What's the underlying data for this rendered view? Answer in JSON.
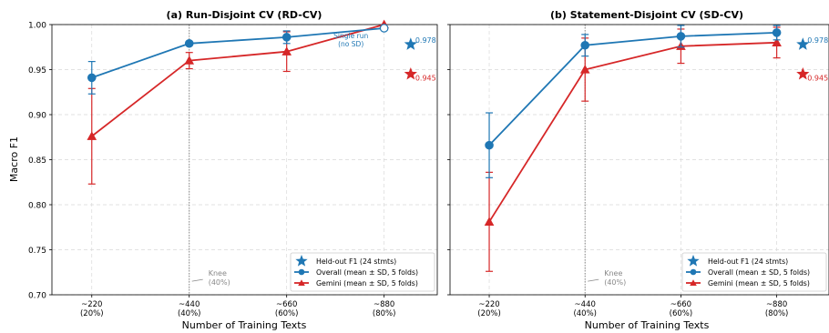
{
  "figure": {
    "ylabel": "Macro F1",
    "xlabel": "Number of Training Texts"
  },
  "colors": {
    "overall": "#1f77b4",
    "gemini": "#d62728",
    "knee": "#888888",
    "grid": "#d9d9d9"
  },
  "chart_data": [
    {
      "type": "line",
      "title": "(a) Run-Disjoint CV (RD-CV)",
      "xlabel": "Number of Training Texts",
      "ylabel": "Macro F1",
      "x": [
        220,
        440,
        660,
        880
      ],
      "tick_labels": [
        [
          "~220",
          "(20%)"
        ],
        [
          "~440",
          "(40%)"
        ],
        [
          "~660",
          "(60%)"
        ],
        [
          "~880",
          "(80%)"
        ]
      ],
      "ylim": [
        0.7,
        1.0
      ],
      "yticks": [
        "0.70",
        "0.75",
        "0.80",
        "0.85",
        "0.90",
        "0.95",
        "1.00"
      ],
      "grid": true,
      "legend_position": "lower right",
      "series": [
        {
          "name": "Overall (mean ± SD, 5 folds)",
          "marker": "circle",
          "values": [
            0.941,
            0.979,
            0.986,
            0.996
          ],
          "sd": [
            0.018,
            0.002,
            0.007,
            0.0
          ]
        },
        {
          "name": "Gemini (mean ± SD, 5 folds)",
          "marker": "triangle",
          "values": [
            0.876,
            0.96,
            0.97,
            1.0
          ],
          "sd": [
            0.053,
            0.009,
            0.022,
            0.0
          ]
        }
      ],
      "heldout": {
        "name": "Held-out F1 (24 stmts)",
        "overall": 0.978,
        "gemini": 0.945,
        "overall_label": "0.978",
        "gemini_label": "0.945"
      },
      "knee": {
        "x": 440,
        "label": [
          "Knee",
          "(40%)"
        ]
      },
      "note": [
        "Single run",
        "(no SD)"
      ]
    },
    {
      "type": "line",
      "title": "(b) Statement-Disjoint CV (SD-CV)",
      "xlabel": "Number of Training Texts",
      "ylabel": "",
      "x": [
        220,
        440,
        660,
        880
      ],
      "tick_labels": [
        [
          "~220",
          "(20%)"
        ],
        [
          "~440",
          "(40%)"
        ],
        [
          "~660",
          "(60%)"
        ],
        [
          "~880",
          "(80%)"
        ]
      ],
      "ylim": [
        0.7,
        1.0
      ],
      "yticks": [],
      "grid": true,
      "legend_position": "lower right",
      "series": [
        {
          "name": "Overall (mean ± SD, 5 folds)",
          "marker": "circle",
          "values": [
            0.866,
            0.977,
            0.987,
            0.991
          ],
          "sd": [
            0.036,
            0.012,
            0.012,
            0.008
          ]
        },
        {
          "name": "Gemini (mean ± SD, 5 folds)",
          "marker": "triangle",
          "values": [
            0.781,
            0.95,
            0.976,
            0.98
          ],
          "sd": [
            0.055,
            0.035,
            0.019,
            0.017
          ]
        }
      ],
      "heldout": {
        "name": "Held-out F1 (24 stmts)",
        "overall": 0.978,
        "gemini": 0.945,
        "overall_label": "0.978",
        "gemini_label": "0.945"
      },
      "knee": {
        "x": 440,
        "label": [
          "Knee",
          "(40%)"
        ]
      },
      "note": []
    }
  ]
}
